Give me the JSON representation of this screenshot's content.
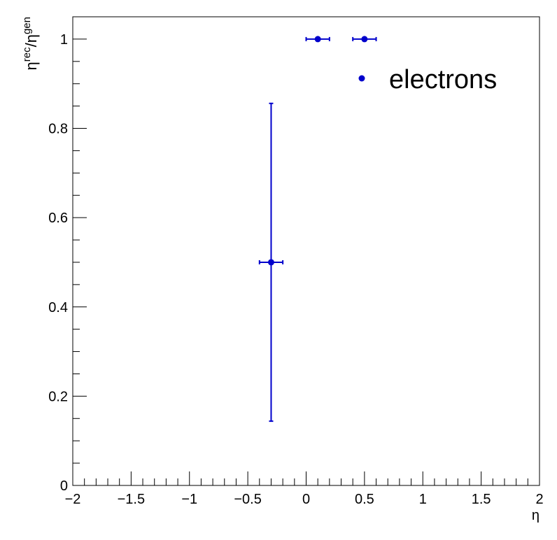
{
  "chart_data": {
    "type": "scatter",
    "title": "",
    "xlabel": "η",
    "ylabel": {
      "base1": "η",
      "sup1": "rec",
      "slash": "/",
      "base2": "η",
      "sup2": "gen"
    },
    "xlim": [
      -2,
      2
    ],
    "ylim": [
      0,
      1.05
    ],
    "x_ticks": [
      -2,
      -1.5,
      -1,
      -0.5,
      0,
      0.5,
      1,
      1.5,
      2
    ],
    "x_tick_labels": [
      "−2",
      "−1.5",
      "−1",
      "−0.5",
      "0",
      "0.5",
      "1",
      "1.5",
      "2"
    ],
    "y_ticks": [
      0,
      0.2,
      0.4,
      0.6,
      0.8,
      1
    ],
    "y_tick_labels": [
      "0",
      "0.2",
      "0.4",
      "0.6",
      "0.8",
      "1"
    ],
    "grid": false,
    "legend_position": "top-right",
    "series": [
      {
        "name": "electrons",
        "color": "#0000cc",
        "points": [
          {
            "x": -0.3,
            "y": 0.5,
            "xerr": 0.1,
            "yerr": 0.356
          },
          {
            "x": 0.1,
            "y": 1.0,
            "xerr": 0.1,
            "yerr": 0
          },
          {
            "x": 0.5,
            "y": 1.0,
            "xerr": 0.1,
            "yerr": 0
          }
        ]
      }
    ]
  }
}
